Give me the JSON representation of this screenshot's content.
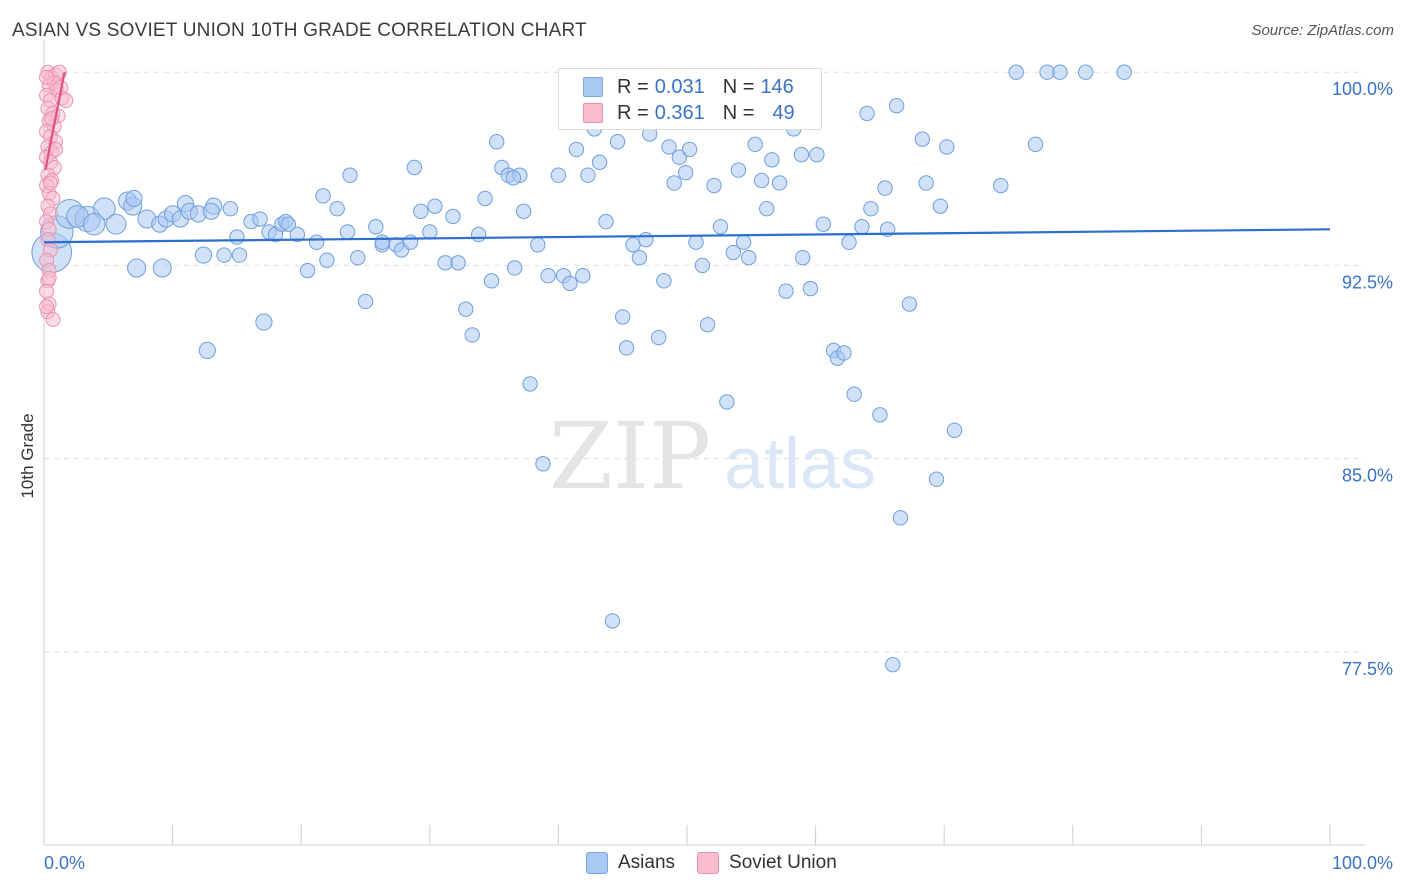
{
  "title": "ASIAN VS SOVIET UNION 10TH GRADE CORRELATION CHART",
  "source": "Source: ZipAtlas.com",
  "watermark": {
    "zip": "ZIP",
    "atlas": "atlas"
  },
  "legend_top": [
    {
      "r_label": "R =",
      "r_value": "0.031",
      "n_label": "N =",
      "n_value": "146",
      "color": "#a9c8f2",
      "border": "#7aa7e0"
    },
    {
      "r_label": "R =",
      "r_value": "0.361",
      "n_label": "N =",
      "n_value": "49",
      "color": "#f8bccd",
      "border": "#ec93ae"
    }
  ],
  "legend_bottom": [
    {
      "label": "Asians",
      "color": "#a9c8f2",
      "border": "#7aa7e0"
    },
    {
      "label": "Soviet Union",
      "color": "#f8bccd",
      "border": "#ec93ae"
    }
  ],
  "chart_data": {
    "type": "scatter",
    "title": "ASIAN VS SOVIET UNION 10TH GRADE CORRELATION CHART",
    "xlabel": "",
    "ylabel": "10th Grade",
    "xlim": [
      0,
      100
    ],
    "ylim": [
      70.0,
      101.25
    ],
    "x_tick_labels": [
      {
        "value": 0,
        "label": "0.0%"
      },
      {
        "value": 100,
        "label": "100.0%"
      }
    ],
    "y_tick_labels": [
      {
        "value": 100.0,
        "label": "100.0%"
      },
      {
        "value": 92.5,
        "label": "92.5%"
      },
      {
        "value": 85.0,
        "label": "85.0%"
      },
      {
        "value": 77.5,
        "label": "77.5%"
      }
    ],
    "grid": true,
    "legend_position": "top-center",
    "series": [
      {
        "name": "Asians",
        "color": "#a9c8f2",
        "edge": "#6f9fdc",
        "trend": {
          "x": [
            0,
            100
          ],
          "y": [
            93.4,
            93.9
          ],
          "color": "#2d6fce"
        },
        "points": [
          [
            0.6,
            93.0,
            2.2
          ],
          [
            1.0,
            93.8,
            1.8
          ],
          [
            2.0,
            94.5,
            1.6
          ],
          [
            3.4,
            94.3,
            1.4
          ],
          [
            4.7,
            94.7,
            1.2
          ],
          [
            5.6,
            94.1,
            1.1
          ],
          [
            6.5,
            95.0,
            1.0
          ],
          [
            6.9,
            94.8,
            1.0
          ],
          [
            8.0,
            94.3,
            1.0
          ],
          [
            7.2,
            92.4,
            1.0
          ],
          [
            9.0,
            94.1,
            0.9
          ],
          [
            9.5,
            94.3,
            0.9
          ],
          [
            10.0,
            94.5,
            0.9
          ],
          [
            10.6,
            94.3,
            0.9
          ],
          [
            11.0,
            94.9,
            0.9
          ],
          [
            11.3,
            94.6,
            0.9
          ],
          [
            12.0,
            94.5,
            0.9
          ],
          [
            12.4,
            92.9,
            0.9
          ],
          [
            12.7,
            89.2,
            0.9
          ],
          [
            13.2,
            94.8,
            0.9
          ],
          [
            13.0,
            94.6,
            0.9
          ],
          [
            14.0,
            92.9,
            0.8
          ],
          [
            14.5,
            94.7,
            0.8
          ],
          [
            15.0,
            93.6,
            0.8
          ],
          [
            15.2,
            92.9,
            0.8
          ],
          [
            16.1,
            94.2,
            0.8
          ],
          [
            16.8,
            94.3,
            0.8
          ],
          [
            17.1,
            90.3,
            0.9
          ],
          [
            17.5,
            93.8,
            0.8
          ],
          [
            18.0,
            93.7,
            0.8
          ],
          [
            18.5,
            94.1,
            0.8
          ],
          [
            18.8,
            94.2,
            0.8
          ],
          [
            19.0,
            94.1,
            0.8
          ],
          [
            19.7,
            93.7,
            0.8
          ],
          [
            20.5,
            92.3,
            0.8
          ],
          [
            21.2,
            93.4,
            0.8
          ],
          [
            21.7,
            95.2,
            0.8
          ],
          [
            22.0,
            92.7,
            0.8
          ],
          [
            22.8,
            94.7,
            0.8
          ],
          [
            23.6,
            93.8,
            0.8
          ],
          [
            23.8,
            96.0,
            0.8
          ],
          [
            24.4,
            92.8,
            0.8
          ],
          [
            25.0,
            91.1,
            0.8
          ],
          [
            25.8,
            94.0,
            0.8
          ],
          [
            26.3,
            93.3,
            0.8
          ],
          [
            27.4,
            93.3,
            0.8
          ],
          [
            27.8,
            93.1,
            0.8
          ],
          [
            28.5,
            93.4,
            0.8
          ],
          [
            28.8,
            96.3,
            0.8
          ],
          [
            29.3,
            94.6,
            0.8
          ],
          [
            30.0,
            93.8,
            0.8
          ],
          [
            30.4,
            94.8,
            0.8
          ],
          [
            31.2,
            92.6,
            0.8
          ],
          [
            31.8,
            94.4,
            0.8
          ],
          [
            32.2,
            92.6,
            0.8
          ],
          [
            32.8,
            90.8,
            0.8
          ],
          [
            33.3,
            89.8,
            0.8
          ],
          [
            33.8,
            93.7,
            0.8
          ],
          [
            34.3,
            95.1,
            0.8
          ],
          [
            34.8,
            91.9,
            0.8
          ],
          [
            35.2,
            97.3,
            0.8
          ],
          [
            35.6,
            96.3,
            0.8
          ],
          [
            36.1,
            96.0,
            0.8
          ],
          [
            36.6,
            92.4,
            0.8
          ],
          [
            37.0,
            96.0,
            0.8
          ],
          [
            37.3,
            94.6,
            0.8
          ],
          [
            37.8,
            87.9,
            0.8
          ],
          [
            38.4,
            93.3,
            0.8
          ],
          [
            38.8,
            84.8,
            0.8
          ],
          [
            39.2,
            92.1,
            0.8
          ],
          [
            40.0,
            96.0,
            0.8
          ],
          [
            40.4,
            92.1,
            0.8
          ],
          [
            40.9,
            91.8,
            0.8
          ],
          [
            41.4,
            97.0,
            0.8
          ],
          [
            41.9,
            92.1,
            0.8
          ],
          [
            42.3,
            96.0,
            0.8
          ],
          [
            42.8,
            97.8,
            0.8
          ],
          [
            43.2,
            96.5,
            0.8
          ],
          [
            43.7,
            94.2,
            0.8
          ],
          [
            44.2,
            78.7,
            0.8
          ],
          [
            44.6,
            97.3,
            0.8
          ],
          [
            45.0,
            90.5,
            0.8
          ],
          [
            45.3,
            89.3,
            0.8
          ],
          [
            45.8,
            93.3,
            0.8
          ],
          [
            46.3,
            92.8,
            0.8
          ],
          [
            46.8,
            93.5,
            0.8
          ],
          [
            47.1,
            97.6,
            0.8
          ],
          [
            47.8,
            89.7,
            0.8
          ],
          [
            48.2,
            91.9,
            0.8
          ],
          [
            48.6,
            97.1,
            0.8
          ],
          [
            49.0,
            95.7,
            0.8
          ],
          [
            49.4,
            96.7,
            0.8
          ],
          [
            49.9,
            96.1,
            0.8
          ],
          [
            50.2,
            97.0,
            0.8
          ],
          [
            50.7,
            93.4,
            0.8
          ],
          [
            51.2,
            92.5,
            0.8
          ],
          [
            51.6,
            90.2,
            0.8
          ],
          [
            52.1,
            95.6,
            0.8
          ],
          [
            52.6,
            94.0,
            0.8
          ],
          [
            53.1,
            87.2,
            0.8
          ],
          [
            53.6,
            93.0,
            0.8
          ],
          [
            54.0,
            96.2,
            0.8
          ],
          [
            54.4,
            93.4,
            0.8
          ],
          [
            54.8,
            92.8,
            0.8
          ],
          [
            55.3,
            97.2,
            0.8
          ],
          [
            55.8,
            95.8,
            0.8
          ],
          [
            56.2,
            94.7,
            0.8
          ],
          [
            56.6,
            96.6,
            0.8
          ],
          [
            57.2,
            95.7,
            0.8
          ],
          [
            57.7,
            91.5,
            0.8
          ],
          [
            58.3,
            97.8,
            0.8
          ],
          [
            59.0,
            92.8,
            0.8
          ],
          [
            59.6,
            91.6,
            0.8
          ],
          [
            60.1,
            96.8,
            0.8
          ],
          [
            60.6,
            94.1,
            0.8
          ],
          [
            61.4,
            89.2,
            0.8
          ],
          [
            61.7,
            88.9,
            0.8
          ],
          [
            62.2,
            89.1,
            0.8
          ],
          [
            62.6,
            93.4,
            0.8
          ],
          [
            63.0,
            87.5,
            0.8
          ],
          [
            63.6,
            94.0,
            0.8
          ],
          [
            64.0,
            98.4,
            0.8
          ],
          [
            64.3,
            94.7,
            0.8
          ],
          [
            65.0,
            86.7,
            0.8
          ],
          [
            65.4,
            95.5,
            0.8
          ],
          [
            65.6,
            93.9,
            0.8
          ],
          [
            66.6,
            82.7,
            0.8
          ],
          [
            66.3,
            98.7,
            0.8
          ],
          [
            67.3,
            91.0,
            0.8
          ],
          [
            68.3,
            97.4,
            0.8
          ],
          [
            68.6,
            95.7,
            0.8
          ],
          [
            69.4,
            84.2,
            0.8
          ],
          [
            69.7,
            94.8,
            0.8
          ],
          [
            70.2,
            97.1,
            0.8
          ],
          [
            70.8,
            86.1,
            0.8
          ],
          [
            66.0,
            77.0,
            0.8
          ],
          [
            74.4,
            95.6,
            0.8
          ],
          [
            75.6,
            100.0,
            0.8
          ],
          [
            78.0,
            100.0,
            0.8
          ],
          [
            79.0,
            100.0,
            0.8
          ],
          [
            81.0,
            100.0,
            0.8
          ],
          [
            84.0,
            100.0,
            0.8
          ],
          [
            77.1,
            97.2,
            0.8
          ],
          [
            56.9,
            98.6,
            0.8
          ],
          [
            7.0,
            95.1,
            0.9
          ],
          [
            2.6,
            94.4,
            1.2
          ],
          [
            3.9,
            94.1,
            1.2
          ],
          [
            9.2,
            92.4,
            1.0
          ],
          [
            26.3,
            93.4,
            0.8
          ],
          [
            36.5,
            95.9,
            0.8
          ],
          [
            58.9,
            96.8,
            0.8
          ]
        ]
      },
      {
        "name": "Soviet Union",
        "color": "#f8bccd",
        "edge": "#ec93ae",
        "trend": {
          "x": [
            0.1,
            1.6
          ],
          "y": [
            96.2,
            100.0
          ],
          "color": "#e0517f"
        },
        "points": [
          [
            0.3,
            100.0
          ],
          [
            0.6,
            99.8
          ],
          [
            0.9,
            99.9
          ],
          [
            1.2,
            100.0
          ],
          [
            0.4,
            99.5
          ],
          [
            0.8,
            99.6
          ],
          [
            1.0,
            99.3
          ],
          [
            0.2,
            99.1
          ],
          [
            0.5,
            98.9
          ],
          [
            1.4,
            99.0
          ],
          [
            1.7,
            98.9
          ],
          [
            0.3,
            98.6
          ],
          [
            0.7,
            98.4
          ],
          [
            1.1,
            98.3
          ],
          [
            0.4,
            98.1
          ],
          [
            0.8,
            97.9
          ],
          [
            0.2,
            97.7
          ],
          [
            0.5,
            97.5
          ],
          [
            0.9,
            97.3
          ],
          [
            0.3,
            97.1
          ],
          [
            0.6,
            96.9
          ],
          [
            0.2,
            96.7
          ],
          [
            0.5,
            96.5
          ],
          [
            0.8,
            96.3
          ],
          [
            0.3,
            96.0
          ],
          [
            0.6,
            95.8
          ],
          [
            0.2,
            95.6
          ],
          [
            0.4,
            95.3
          ],
          [
            0.7,
            95.1
          ],
          [
            0.3,
            94.8
          ],
          [
            0.5,
            94.5
          ],
          [
            0.2,
            94.2
          ],
          [
            0.4,
            93.9
          ],
          [
            0.3,
            93.5
          ],
          [
            0.5,
            93.1
          ],
          [
            0.2,
            92.7
          ],
          [
            0.4,
            92.3
          ],
          [
            0.3,
            91.9
          ],
          [
            0.2,
            91.5
          ],
          [
            0.4,
            91.0
          ],
          [
            0.3,
            90.7
          ],
          [
            0.7,
            90.4
          ],
          [
            0.2,
            90.9
          ],
          [
            1.3,
            99.4
          ],
          [
            0.6,
            98.2
          ],
          [
            0.9,
            97.0
          ],
          [
            0.4,
            92.0
          ],
          [
            0.2,
            99.8
          ],
          [
            0.5,
            95.7
          ]
        ]
      }
    ]
  }
}
